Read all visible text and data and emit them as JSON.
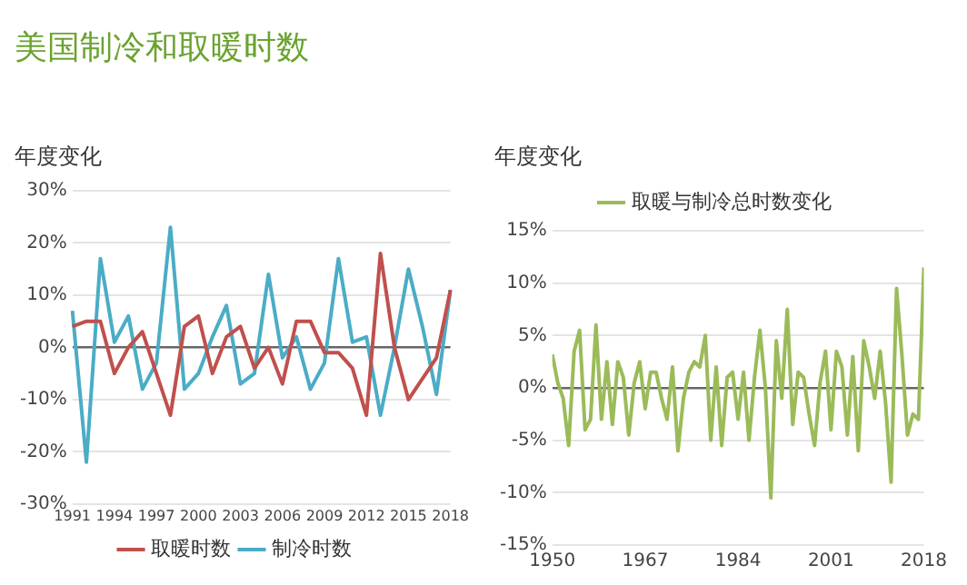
{
  "chart_data": [
    {
      "type": "line",
      "title": "美国制冷和取暖时数",
      "ylabel": "年度变化",
      "categories": [
        "1991",
        null,
        null,
        "1994",
        null,
        null,
        "1997",
        null,
        null,
        "2000",
        null,
        null,
        "2003",
        null,
        null,
        "2006",
        null,
        null,
        "2009",
        null,
        null,
        "2012",
        null,
        null,
        "2015",
        null,
        null,
        "2018"
      ],
      "series": [
        {
          "name": "取暖时数",
          "color": "#c0504d",
          "values": [
            4,
            5,
            5,
            -5,
            0,
            3,
            -5,
            -13,
            4,
            6,
            -5,
            2,
            4,
            -4,
            0,
            -7,
            5,
            5,
            -1,
            -1,
            -4,
            -13,
            18,
            0,
            -10,
            -6,
            -2,
            11
          ]
        },
        {
          "name": "制冷时数",
          "color": "#4bacc6",
          "values": [
            7,
            -22,
            17,
            1,
            6,
            -8,
            -3,
            23,
            -8,
            -5,
            2,
            8,
            -7,
            -5,
            14,
            -2,
            2,
            -8,
            -3,
            17,
            1,
            2,
            -13,
            0,
            15,
            4,
            -9,
            11
          ]
        }
      ],
      "ylim": [
        -30,
        30
      ],
      "yticks": [
        {
          "value": -30,
          "label": "-30%"
        },
        {
          "value": -20,
          "label": "-20%"
        },
        {
          "value": -10,
          "label": "-10%"
        },
        {
          "value": 0,
          "label": "0%"
        },
        {
          "value": 10,
          "label": "10%"
        },
        {
          "value": 20,
          "label": "20%"
        },
        {
          "value": 30,
          "label": "30%"
        }
      ],
      "grid": "y",
      "legend": "bottom",
      "marker": "none",
      "line_style": "solid"
    },
    {
      "type": "line",
      "ylabel": "年度变化",
      "x": [
        1950,
        1951,
        1952,
        1953,
        1954,
        1955,
        1956,
        1957,
        1958,
        1959,
        1960,
        1961,
        1962,
        1963,
        1964,
        1965,
        1966,
        1967,
        1968,
        1969,
        1970,
        1971,
        1972,
        1973,
        1974,
        1975,
        1976,
        1977,
        1978,
        1979,
        1980,
        1981,
        1982,
        1983,
        1984,
        1985,
        1986,
        1987,
        1988,
        1989,
        1990,
        1991,
        1992,
        1993,
        1994,
        1995,
        1996,
        1997,
        1998,
        1999,
        2000,
        2001,
        2002,
        2003,
        2004,
        2005,
        2006,
        2007,
        2008,
        2009,
        2010,
        2011,
        2012,
        2013,
        2014,
        2015,
        2016,
        2017,
        2018
      ],
      "series": [
        {
          "name": "取暖与制冷总时数变化",
          "color": "#9bbb59",
          "values": [
            3.2,
            0.5,
            -1,
            -5.5,
            3.5,
            5.5,
            -4,
            -3,
            6,
            -3,
            2.5,
            -3.5,
            2.5,
            1,
            -4.5,
            0.5,
            2.5,
            -2,
            1.5,
            1.5,
            -1,
            -3,
            2,
            -6,
            -1,
            1.5,
            2.5,
            2,
            5,
            -5,
            2,
            -5.5,
            1,
            1.5,
            -3,
            1.5,
            -5,
            1,
            5.5,
            0,
            -10.5,
            4.5,
            -1,
            7.5,
            -3.5,
            1.5,
            1,
            -2.5,
            -5.5,
            0.5,
            3.5,
            -4,
            3.5,
            2,
            -4.5,
            3,
            -6,
            4.5,
            2,
            -1,
            3.5,
            -1.5,
            -9,
            9.5,
            3,
            -4.5,
            -2.5,
            -3,
            11.5
          ]
        }
      ],
      "xlim": [
        1950,
        2018
      ],
      "xticks": [
        1950,
        1967,
        1984,
        2001,
        2018
      ],
      "ylim": [
        -15,
        15
      ],
      "yticks": [
        {
          "value": -15,
          "label": "-15%"
        },
        {
          "value": -10,
          "label": "-10%"
        },
        {
          "value": -5,
          "label": "-5%"
        },
        {
          "value": 0,
          "label": "0%"
        },
        {
          "value": 5,
          "label": "5%"
        },
        {
          "value": 10,
          "label": "10%"
        },
        {
          "value": 15,
          "label": "15%"
        }
      ],
      "grid": "y",
      "legend": "top",
      "marker": "none",
      "line_style": "solid"
    }
  ]
}
